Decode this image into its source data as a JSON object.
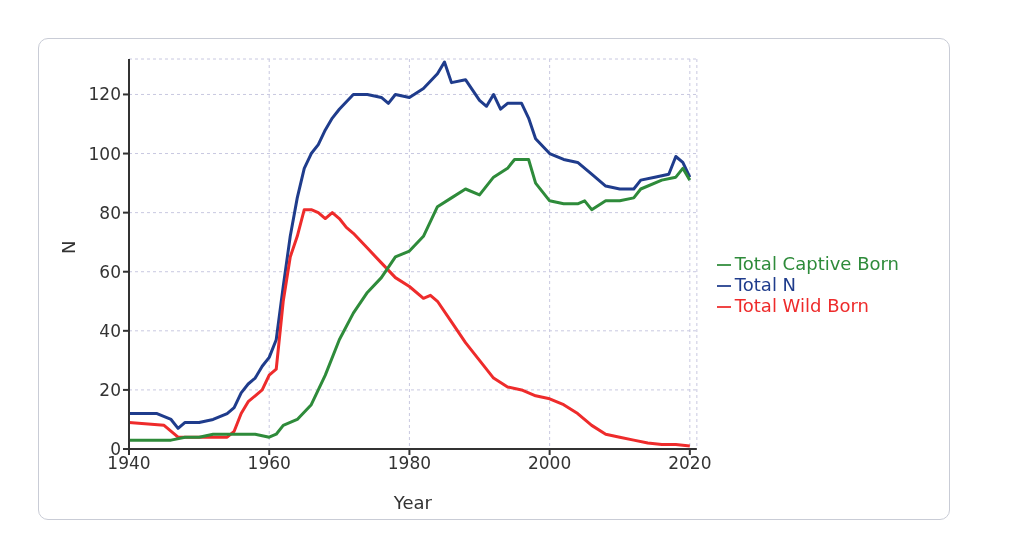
{
  "chart_data": {
    "type": "line",
    "xlabel": "Year",
    "ylabel": "N",
    "xlim": [
      1940,
      2021
    ],
    "xticks": [
      1940,
      1960,
      1980,
      2000,
      2020
    ],
    "ylim": [
      0,
      132
    ],
    "yticks": [
      0,
      20,
      40,
      60,
      80,
      100,
      120
    ],
    "grid": true,
    "legend": "right",
    "line_style": "solid",
    "marker": "none",
    "series": [
      {
        "name": "Total N",
        "color": "#1f3c8c",
        "x": [
          1940,
          1944,
          1946,
          1947,
          1948,
          1950,
          1952,
          1954,
          1955,
          1956,
          1957,
          1958,
          1959,
          1960,
          1961,
          1962,
          1963,
          1964,
          1965,
          1966,
          1967,
          1968,
          1969,
          1970,
          1972,
          1974,
          1976,
          1977,
          1978,
          1980,
          1982,
          1984,
          1985,
          1986,
          1988,
          1990,
          1991,
          1992,
          1993,
          1994,
          1996,
          1997,
          1998,
          2000,
          2002,
          2004,
          2006,
          2008,
          2010,
          2012,
          2013,
          2015,
          2017,
          2018,
          2019,
          2020
        ],
        "values": [
          12,
          12,
          10,
          7,
          9,
          9,
          10,
          12,
          14,
          19,
          22,
          24,
          28,
          31,
          37,
          55,
          72,
          85,
          95,
          100,
          103,
          108,
          112,
          115,
          120,
          120,
          119,
          117,
          120,
          119,
          122,
          127,
          131,
          124,
          125,
          118,
          116,
          120,
          115,
          117,
          117,
          112,
          105,
          100,
          98,
          97,
          93,
          89,
          88,
          88,
          91,
          92,
          93,
          99,
          97,
          92
        ]
      },
      {
        "name": "Total Wild Born",
        "color": "#ee2b2b",
        "x": [
          1940,
          1945,
          1947,
          1950,
          1954,
          1955,
          1956,
          1957,
          1958,
          1959,
          1960,
          1961,
          1962,
          1963,
          1964,
          1965,
          1966,
          1967,
          1968,
          1969,
          1970,
          1971,
          1972,
          1974,
          1976,
          1978,
          1980,
          1982,
          1983,
          1984,
          1986,
          1988,
          1990,
          1992,
          1994,
          1996,
          1998,
          2000,
          2002,
          2004,
          2006,
          2008,
          2010,
          2012,
          2014,
          2016,
          2018,
          2020
        ],
        "values": [
          9,
          8,
          4,
          4,
          4,
          6,
          12,
          16,
          18,
          20,
          25,
          27,
          50,
          65,
          72,
          81,
          81,
          80,
          78,
          80,
          78,
          75,
          73,
          68,
          63,
          58,
          55,
          51,
          52,
          50,
          43,
          36,
          30,
          24,
          21,
          20,
          18,
          17,
          15,
          12,
          8,
          5,
          4,
          3,
          2,
          1.5,
          1.5,
          1
        ]
      },
      {
        "name": "Total Captive Born",
        "color": "#2e8b3a",
        "x": [
          1940,
          1946,
          1948,
          1950,
          1952,
          1956,
          1958,
          1960,
          1961,
          1962,
          1964,
          1966,
          1968,
          1970,
          1972,
          1974,
          1976,
          1978,
          1980,
          1982,
          1984,
          1986,
          1988,
          1990,
          1992,
          1994,
          1995,
          1997,
          1998,
          2000,
          2002,
          2004,
          2005,
          2006,
          2008,
          2010,
          2012,
          2013,
          2016,
          2018,
          2019,
          2020
        ],
        "values": [
          3,
          3,
          4,
          4,
          5,
          5,
          5,
          4,
          5,
          8,
          10,
          15,
          25,
          37,
          46,
          53,
          58,
          65,
          67,
          72,
          82,
          85,
          88,
          86,
          92,
          95,
          98,
          98,
          90,
          84,
          83,
          83,
          84,
          81,
          84,
          84,
          85,
          88,
          91,
          92,
          95,
          91
        ]
      }
    ]
  }
}
